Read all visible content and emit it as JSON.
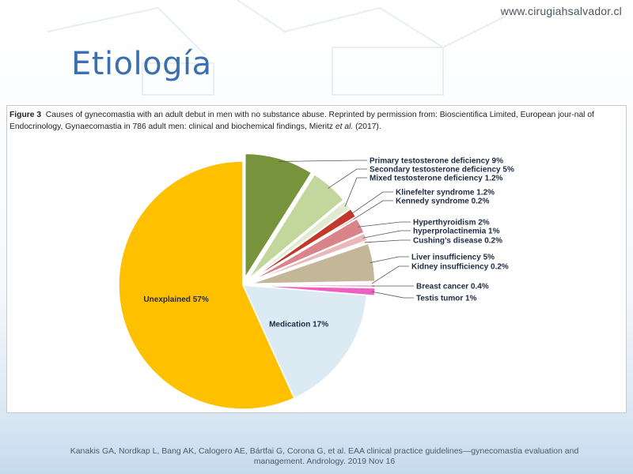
{
  "header": {
    "site_url": "www.cirugiahsalvador.cl"
  },
  "slide": {
    "title": "Etiología"
  },
  "figure": {
    "label": "Figure 3",
    "caption_text": "Causes of gynecomastia with an adult debut in men with no substance abuse. Reprinted by permission from: Bioscientifica Limited, European jour-nal of Endocrinology, Gynaecomastia in 786 adult men: clinical and biochemical findings, Mieritz ",
    "caption_italic": "et al.",
    "caption_end": " (2017)."
  },
  "chart_data": {
    "type": "pie",
    "title": "",
    "slices": [
      {
        "label": "Primary testosterone deficiency",
        "display": "Primary testosterone deficiency  9%",
        "value": 9,
        "color": "#77933c",
        "exploded": true
      },
      {
        "label": "Secondary testosterone deficiency",
        "display": "Secondary testosterone deficiency 5%",
        "value": 5,
        "color": "#c3d69b",
        "exploded": true
      },
      {
        "label": "Mixed testosterone deficiency",
        "display": "Mixed testosterone deficiency 1.2%",
        "value": 1.2,
        "color": "#e2ebcf",
        "exploded": true
      },
      {
        "label": "Klinefelter syndrome",
        "display": "Klinefelter syndrome 1.2%",
        "value": 1.2,
        "color": "#c0392b",
        "exploded": true
      },
      {
        "label": "Kennedy syndrome",
        "display": "Kennedy syndrome 0.2%",
        "value": 0.2,
        "color": "#7d1a12",
        "exploded": true
      },
      {
        "label": "Hyperthyroidism",
        "display": "Hyperthyroidism 2%",
        "value": 2,
        "color": "#d9848a",
        "exploded": true
      },
      {
        "label": "hyperprolactinemia",
        "display": "hyperprolactinemia 1%",
        "value": 1,
        "color": "#eab8bb",
        "exploded": true
      },
      {
        "label": "Cushing's disease",
        "display": "Cushing’s disease 0.2%",
        "value": 0.2,
        "color": "#f3d4d6",
        "exploded": true
      },
      {
        "label": "Liver insufficiency",
        "display": "Liver insufficiency 5%",
        "value": 5,
        "color": "#c4b797",
        "exploded": true
      },
      {
        "label": "Kidney insufficiency",
        "display": "Kidney insufficiency 0.2%",
        "value": 0.2,
        "color": "#ddd3b8",
        "exploded": true
      },
      {
        "label": "Breast cancer",
        "display": "Breast cancer 0.4%",
        "value": 0.4,
        "color": "#f6b3dc",
        "exploded": true
      },
      {
        "label": "Testis tumor",
        "display": "Testis tumor 1%",
        "value": 1,
        "color": "#ee5fc0",
        "exploded": true
      },
      {
        "label": "Medication",
        "display": "Medication 17%",
        "value": 17,
        "color": "#dbeaf3",
        "exploded": false
      },
      {
        "label": "Unexplained",
        "display": "Unexplained 57%",
        "value": 57,
        "color": "#ffc000",
        "exploded": false
      }
    ]
  },
  "reference": {
    "line1": "Kanakis GA, Nordkap L, Bang AK, Calogero AE, Bártfai G, Corona G, et al. EAA clinical practice guidelines—gynecomastia evaluation and",
    "line2": "management. Andrology. 2019 Nov 16"
  }
}
